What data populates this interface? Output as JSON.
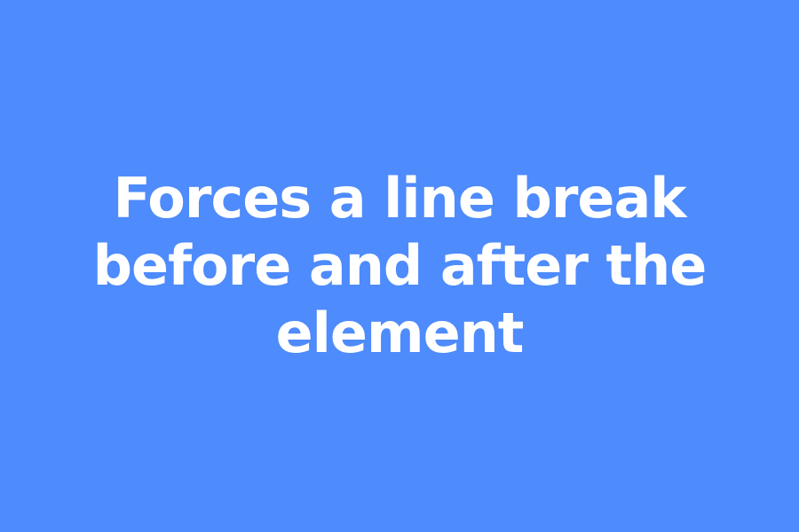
{
  "colors": {
    "background": "#4E8BFC",
    "text": "#FFFFFF"
  },
  "headline": {
    "lines": [
      "Forces a line break",
      "before and after the",
      "element"
    ]
  }
}
